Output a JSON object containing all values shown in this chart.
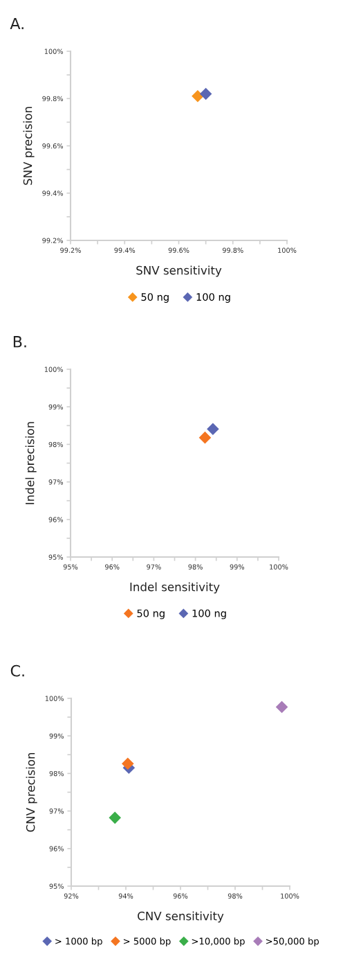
{
  "chart_data": [
    {
      "type": "scatter",
      "title": "A.",
      "xlabel": "SNV sensitivity",
      "ylabel": "SNV precision",
      "marker": "diamond",
      "legend": "bottom",
      "xlim": [
        99.2,
        100
      ],
      "ylim": [
        99.2,
        100
      ],
      "xticks": [
        {
          "value": 99.2,
          "label": "99.2%"
        },
        {
          "value": 99.3,
          "label": null
        },
        {
          "value": 99.4,
          "label": "99.4%"
        },
        {
          "value": 99.5,
          "label": null
        },
        {
          "value": 99.6,
          "label": "99.6%"
        },
        {
          "value": 99.7,
          "label": null
        },
        {
          "value": 99.8,
          "label": "99.8%"
        },
        {
          "value": 99.9,
          "label": null
        },
        {
          "value": 100,
          "label": "100%"
        }
      ],
      "yticks": [
        {
          "value": 99.2,
          "label": "99.2%"
        },
        {
          "value": 99.3,
          "label": null
        },
        {
          "value": 99.4,
          "label": "99.4%"
        },
        {
          "value": 99.5,
          "label": null
        },
        {
          "value": 99.6,
          "label": "99.6%"
        },
        {
          "value": 99.7,
          "label": null
        },
        {
          "value": 99.8,
          "label": "99.8%"
        },
        {
          "value": 99.9,
          "label": null
        },
        {
          "value": 100,
          "label": "100%"
        }
      ],
      "series": [
        {
          "name": "50 ng",
          "color": "#f7941d",
          "x": [
            99.67
          ],
          "values": [
            99.81
          ]
        },
        {
          "name": "100 ng",
          "color": "#5b67b3",
          "x": [
            99.7
          ],
          "values": [
            99.82
          ]
        }
      ]
    },
    {
      "type": "scatter",
      "title": "B.",
      "xlabel": "Indel sensitivity",
      "ylabel": "Indel precision",
      "marker": "diamond",
      "legend": "bottom",
      "xlim": [
        95,
        100
      ],
      "ylim": [
        95,
        100
      ],
      "xticks": [
        {
          "value": 95,
          "label": "95%"
        },
        {
          "value": 95.5,
          "label": null
        },
        {
          "value": 96,
          "label": "96%"
        },
        {
          "value": 96.5,
          "label": null
        },
        {
          "value": 97,
          "label": "97%"
        },
        {
          "value": 97.5,
          "label": null
        },
        {
          "value": 98,
          "label": "98%"
        },
        {
          "value": 98.5,
          "label": null
        },
        {
          "value": 99,
          "label": "99%"
        },
        {
          "value": 99.5,
          "label": null
        },
        {
          "value": 100,
          "label": "100%"
        }
      ],
      "yticks": [
        {
          "value": 95,
          "label": "95%"
        },
        {
          "value": 95.5,
          "label": null
        },
        {
          "value": 96,
          "label": "96%"
        },
        {
          "value": 96.5,
          "label": null
        },
        {
          "value": 97,
          "label": "97%"
        },
        {
          "value": 97.5,
          "label": null
        },
        {
          "value": 98,
          "label": "98%"
        },
        {
          "value": 98.5,
          "label": null
        },
        {
          "value": 99,
          "label": "99%"
        },
        {
          "value": 99.5,
          "label": null
        },
        {
          "value": 100,
          "label": "100%"
        }
      ],
      "series": [
        {
          "name": "50 ng",
          "color": "#f47521",
          "x": [
            98.23
          ],
          "values": [
            98.18
          ]
        },
        {
          "name": "100 ng",
          "color": "#5b67b3",
          "x": [
            98.42
          ],
          "values": [
            98.41
          ]
        }
      ]
    },
    {
      "type": "scatter",
      "title": "C.",
      "xlabel": "CNV sensitivity",
      "ylabel": "CNV precision",
      "marker": "diamond",
      "legend": "bottom",
      "xlim": [
        92,
        100
      ],
      "ylim": [
        95,
        100
      ],
      "xticks": [
        {
          "value": 92,
          "label": "92%"
        },
        {
          "value": 93,
          "label": null
        },
        {
          "value": 94,
          "label": "94%"
        },
        {
          "value": 95,
          "label": null
        },
        {
          "value": 96,
          "label": "96%"
        },
        {
          "value": 97,
          "label": null
        },
        {
          "value": 98,
          "label": "98%"
        },
        {
          "value": 99,
          "label": null
        },
        {
          "value": 100,
          "label": "100%"
        }
      ],
      "yticks": [
        {
          "value": 95,
          "label": "95%"
        },
        {
          "value": 95.5,
          "label": null
        },
        {
          "value": 96,
          "label": "96%"
        },
        {
          "value": 96.5,
          "label": null
        },
        {
          "value": 97,
          "label": "97%"
        },
        {
          "value": 97.5,
          "label": null
        },
        {
          "value": 98,
          "label": "98%"
        },
        {
          "value": 98.5,
          "label": null
        },
        {
          "value": 99,
          "label": "99%"
        },
        {
          "value": 99.5,
          "label": null
        },
        {
          "value": 100,
          "label": "100%"
        }
      ],
      "series": [
        {
          "name": "> 1000 bp",
          "color": "#5b67b3",
          "x": [
            94.11
          ],
          "values": [
            98.15
          ]
        },
        {
          "name": "> 5000 bp",
          "color": "#f47521",
          "x": [
            94.07
          ],
          "values": [
            98.26
          ]
        },
        {
          "name": ">10,000 bp",
          "color": "#3aae49",
          "x": [
            93.6
          ],
          "values": [
            96.82
          ]
        },
        {
          "name": ">50,000 bp",
          "color": "#a87cb8",
          "x": [
            99.71
          ],
          "values": [
            99.77
          ]
        }
      ]
    }
  ]
}
